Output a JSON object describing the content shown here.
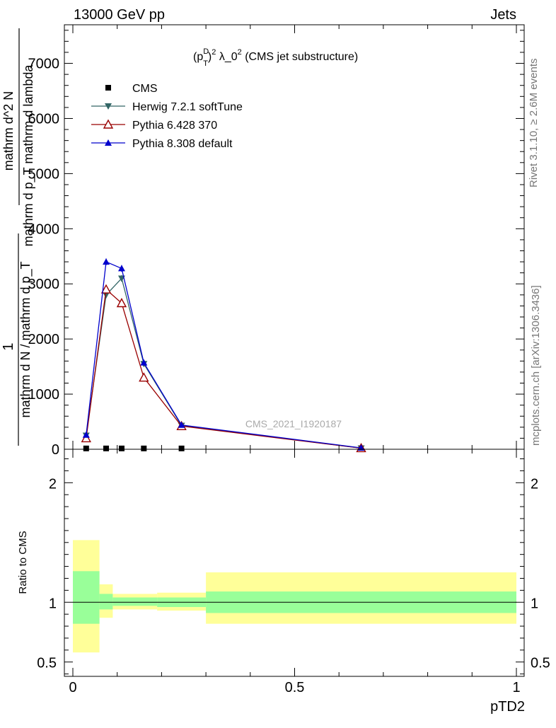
{
  "header": {
    "left": "13000 GeV pp",
    "right": "Jets"
  },
  "side_labels": {
    "rivet": "Rivet 3.1.10, ≥ 2.6M events",
    "mcplots": "mcplots.cern.ch [arXiv:1306.3436]"
  },
  "chart_data": [
    {
      "type": "line",
      "title": "(p_T^D)^2 λ_0^2 (CMS jet substructure)",
      "title_parts": {
        "a": "(p",
        "sup1": "D",
        "sub1": "T",
        "b": ")",
        "sup2": "2",
        "c": " λ_0",
        "sup3": "2",
        "d": " (CMS jet substructure)"
      },
      "watermark": "CMS_2021_I1920187",
      "ylabel": {
        "frac_top_a": "1",
        "frac_bottom_a": "mathrm d N / mathrm d p_T",
        "frac_top_b": "mathrm d^2 N",
        "frac_bottom_b": "mathrm d p_T mathrm d lambda"
      },
      "ylim": [
        0,
        7700
      ],
      "yticks": [
        0,
        1000,
        2000,
        3000,
        4000,
        5000,
        6000,
        7000
      ],
      "ytick_labels": [
        "0",
        "1000",
        "2000",
        "3000",
        "4000",
        "5000",
        "6000",
        "7000"
      ],
      "xlim": [
        0,
        1
      ],
      "x": [
        0.03,
        0.075,
        0.11,
        0.16,
        0.245,
        0.65
      ],
      "series": [
        {
          "name": "CMS",
          "marker": "square",
          "color": "#000000",
          "values": [
            2,
            2,
            2,
            2,
            2,
            null
          ]
        },
        {
          "name": "Herwig 7.2.1 softTune",
          "marker": "triangle-down",
          "color": "#336666",
          "values": [
            250,
            2800,
            3100,
            1550,
            430,
            20
          ]
        },
        {
          "name": "Pythia 6.428 370",
          "marker": "triangle-up-open",
          "color": "#990000",
          "values": [
            200,
            2900,
            2650,
            1300,
            420,
            20
          ]
        },
        {
          "name": "Pythia 8.308 default",
          "marker": "triangle-up",
          "color": "#0000cc",
          "values": [
            260,
            3400,
            3280,
            1570,
            440,
            25
          ]
        }
      ],
      "error_bars": [
        30,
        60,
        60,
        40,
        20,
        10
      ]
    },
    {
      "type": "area",
      "ylabel": "Ratio to CMS",
      "xlabel": "pTD2",
      "ylim": [
        0.38,
        2.28
      ],
      "yticks": [
        0.5,
        1,
        2
      ],
      "ytick_labels": [
        "0.5",
        "1",
        "2"
      ],
      "xticks": [
        0,
        0.5,
        1
      ],
      "xtick_labels": [
        "0",
        "0.5",
        "1"
      ],
      "reference": 1,
      "bins": [
        {
          "x0": 0.0,
          "x1": 0.06,
          "inner": [
            0.82,
            1.26
          ],
          "outer": [
            0.58,
            1.52
          ]
        },
        {
          "x0": 0.06,
          "x1": 0.09,
          "inner": [
            0.94,
            1.07
          ],
          "outer": [
            0.87,
            1.15
          ]
        },
        {
          "x0": 0.09,
          "x1": 0.19,
          "inner": [
            0.97,
            1.04
          ],
          "outer": [
            0.94,
            1.07
          ]
        },
        {
          "x0": 0.19,
          "x1": 0.3,
          "inner": [
            0.96,
            1.04
          ],
          "outer": [
            0.93,
            1.08
          ]
        },
        {
          "x0": 0.3,
          "x1": 1.0,
          "inner": [
            0.91,
            1.09
          ],
          "outer": [
            0.82,
            1.25
          ]
        }
      ],
      "colors": {
        "inner": "#99ff99",
        "outer": "#ffff99"
      }
    }
  ]
}
